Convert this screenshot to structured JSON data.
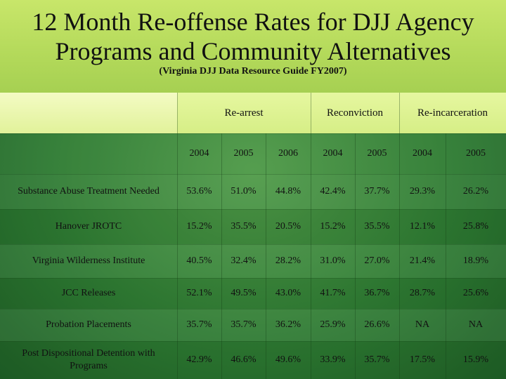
{
  "title_line1": "12 Month Re-offense Rates for DJJ Agency",
  "title_line2": "Programs and Community Alternatives",
  "subtitle": "(Virginia DJJ Data Resource Guide FY2007)",
  "groups": [
    {
      "label": "Re-arrest"
    },
    {
      "label": "Reconviction"
    },
    {
      "label": "Re-incarceration"
    }
  ],
  "years": [
    "2004",
    "2005",
    "2006",
    "2004",
    "2005",
    "2004",
    "2005"
  ],
  "rows": [
    {
      "label": "Substance Abuse Treatment Needed",
      "values": [
        "53.6%",
        "51.0%",
        "44.8%",
        "42.4%",
        "37.7%",
        "29.3%",
        "26.2%"
      ]
    },
    {
      "label": "Hanover JROTC",
      "values": [
        "15.2%",
        "35.5%",
        "20.5%",
        "15.2%",
        "35.5%",
        "12.1%",
        "25.8%"
      ]
    },
    {
      "label": "Virginia Wilderness Institute",
      "values": [
        "40.5%",
        "32.4%",
        "28.2%",
        "31.0%",
        "27.0%",
        "21.4%",
        "18.9%"
      ]
    },
    {
      "label": "JCC Releases",
      "values": [
        "52.1%",
        "49.5%",
        "43.0%",
        "41.7%",
        "36.7%",
        "28.7%",
        "25.6%"
      ]
    },
    {
      "label": "Probation Placements",
      "values": [
        "35.7%",
        "35.7%",
        "36.2%",
        "25.9%",
        "26.6%",
        "NA",
        "NA"
      ]
    },
    {
      "label": "Post Dispositional Detention with Programs",
      "values": [
        "42.9%",
        "46.6%",
        "49.6%",
        "33.9%",
        "35.7%",
        "17.5%",
        "15.9%"
      ]
    }
  ]
}
